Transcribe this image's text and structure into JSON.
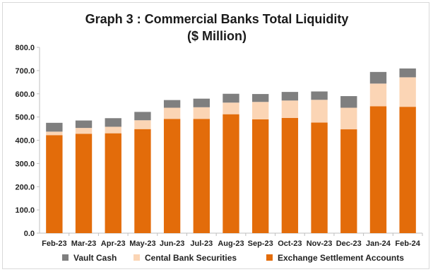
{
  "chart_data": {
    "type": "bar",
    "stacked": true,
    "title": "Graph 3 : Commercial Banks Total Liquidity",
    "subtitle": "($ Million)",
    "xlabel": "",
    "ylabel": "",
    "ylim": [
      0,
      800
    ],
    "yticks": [
      "0.0",
      "100.0",
      "200.0",
      "300.0",
      "400.0",
      "500.0",
      "600.0",
      "700.0",
      "800.0"
    ],
    "ytick_values": [
      0,
      100,
      200,
      300,
      400,
      500,
      600,
      700,
      800
    ],
    "grid": false,
    "legend_position": "bottom",
    "categories": [
      "Feb-23",
      "Mar-23",
      "Apr-23",
      "May-23",
      "Jun-23",
      "Jul-23",
      "Aug-23",
      "Sep-23",
      "Oct-23",
      "Nov-23",
      "Dec-23",
      "Jan-24",
      "Feb-24"
    ],
    "series": [
      {
        "name": "Exchange Settlement Accounts",
        "color": "#e36c0a",
        "values": [
          422,
          428,
          430,
          448,
          492,
          492,
          512,
          490,
          496,
          476,
          447,
          546,
          544
        ]
      },
      {
        "name": "Cental Bank Securities",
        "color": "#fbd5b5",
        "values": [
          15,
          25,
          28,
          38,
          48,
          50,
          50,
          75,
          75,
          98,
          93,
          98,
          127
        ]
      },
      {
        "name": "Vault Cash",
        "color": "#7f7f7f",
        "values": [
          38,
          32,
          37,
          36,
          33,
          37,
          38,
          34,
          37,
          36,
          50,
          50,
          38
        ]
      }
    ],
    "legend_order": [
      "Vault Cash",
      "Cental Bank Securities",
      "Exchange Settlement Accounts"
    ]
  }
}
